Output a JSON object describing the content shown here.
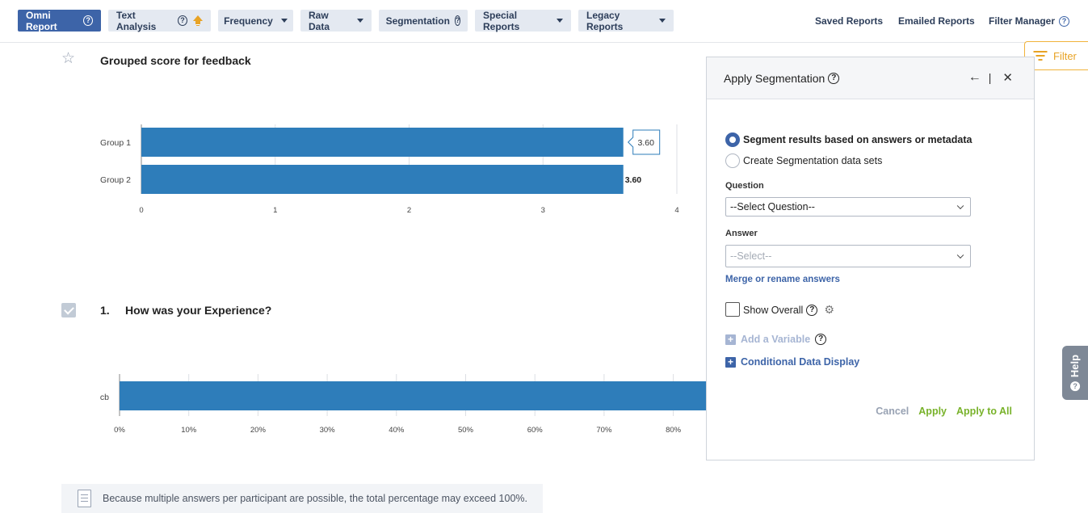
{
  "nav": {
    "tabs": [
      {
        "label": "Omni Report",
        "help": "?",
        "active": true
      },
      {
        "label": "Text Analysis",
        "help": "?"
      },
      {
        "label": "Frequency"
      },
      {
        "label": "Raw Data"
      },
      {
        "label": "Segmentation",
        "help": "?"
      },
      {
        "label": "Special Reports"
      },
      {
        "label": "Legacy Reports"
      }
    ],
    "links": [
      {
        "label": "Saved Reports"
      },
      {
        "label": "Emailed Reports"
      },
      {
        "label": "Filter Manager",
        "help": "?"
      }
    ]
  },
  "filter_tab": {
    "label": "Filter"
  },
  "help_tab": {
    "label": "Help"
  },
  "grouped": {
    "title": "Grouped score for feedback",
    "chart_data": {
      "type": "bar",
      "orientation": "horizontal",
      "categories": [
        "Group 1",
        "Group 2"
      ],
      "values": [
        3.6,
        3.6
      ],
      "data_labels": [
        "3.60",
        "3.60"
      ],
      "xlim": [
        0,
        4
      ],
      "x_ticks": [
        "0",
        "1",
        "2",
        "3",
        "4"
      ],
      "color": "#2e7dba",
      "grid": true
    }
  },
  "question1": {
    "number": "1.",
    "title": "How was your Experience?",
    "chart_data": {
      "type": "bar",
      "orientation": "horizontal",
      "categories": [
        "cb"
      ],
      "values": [
        100
      ],
      "xlim": [
        0,
        100
      ],
      "x_ticks": [
        "0%",
        "10%",
        "20%",
        "30%",
        "40%",
        "50%",
        "60%",
        "70%",
        "80%"
      ],
      "color": "#2e7dba",
      "grid": true
    }
  },
  "note": "Because multiple answers per participant are possible, the total percentage may exceed 100%.",
  "panel": {
    "title": "Apply Segmentation",
    "help": "?",
    "back": "←",
    "divider": "|",
    "close": "✕",
    "radio1": "Segment results based on answers or metadata",
    "radio2": "Create Segmentation data sets",
    "question_label": "Question",
    "question_value": "--Select Question--",
    "answer_label": "Answer",
    "answer_value": "--Select--",
    "merge_link": "Merge or rename answers",
    "show_overall": "Show Overall",
    "show_overall_help": "?",
    "add_variable": "Add a Variable",
    "add_variable_help": "?",
    "conditional": "Conditional Data Display",
    "cancel": "Cancel",
    "apply": "Apply",
    "apply_all": "Apply to All"
  }
}
